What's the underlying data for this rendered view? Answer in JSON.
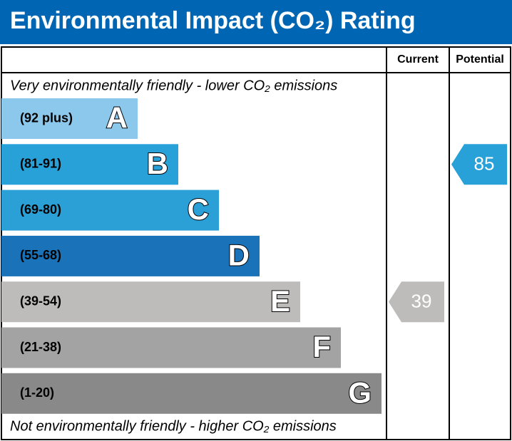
{
  "header": {
    "title": "Environmental Impact (CO₂) Rating"
  },
  "columns": {
    "current": "Current",
    "potential": "Potential"
  },
  "notes": {
    "top": "Very environmentally friendly - lower CO₂ emissions",
    "bottom": "Not environmentally friendly - higher CO₂ emissions"
  },
  "bands": [
    {
      "range": "(92 plus)",
      "letter": "A",
      "color": "#8cc8ec"
    },
    {
      "range": "(81-91)",
      "letter": "B",
      "color": "#28a0d8"
    },
    {
      "range": "(69-80)",
      "letter": "C",
      "color": "#2aa0d6"
    },
    {
      "range": "(55-68)",
      "letter": "D",
      "color": "#1a72b8"
    },
    {
      "range": "(39-54)",
      "letter": "E",
      "color": "#bdbcbb"
    },
    {
      "range": "(21-38)",
      "letter": "F",
      "color": "#a3a3a3"
    },
    {
      "range": "(1-20)",
      "letter": "G",
      "color": "#898989"
    }
  ],
  "ratings": {
    "current": 39,
    "potential": 85
  }
}
